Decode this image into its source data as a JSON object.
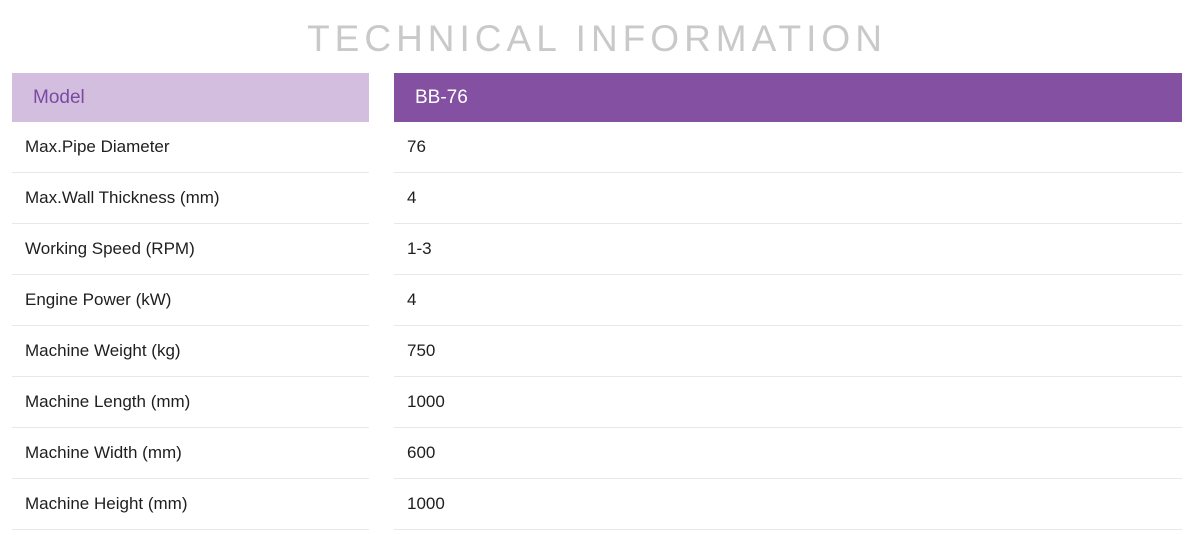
{
  "title": "TECHNICAL INFORMATION",
  "colors": {
    "title": "#c9c9c9",
    "header_left_bg": "#d3bedf",
    "header_left_text": "#7a4aa1",
    "header_right_bg": "#8450a2",
    "header_right_text": "#ffffff",
    "row_divider": "#e8e8e8"
  },
  "table": {
    "header": {
      "label": "Model",
      "value": "BB-76"
    },
    "rows": [
      {
        "label": "Max.Pipe Diameter",
        "value": "76"
      },
      {
        "label": "Max.Wall Thickness (mm)",
        "value": "4"
      },
      {
        "label": "Working Speed (RPM)",
        "value": "1-3"
      },
      {
        "label": "Engine Power (kW)",
        "value": "4"
      },
      {
        "label": "Machine Weight (kg)",
        "value": "750"
      },
      {
        "label": "Machine Length (mm)",
        "value": "1000"
      },
      {
        "label": "Machine Width (mm)",
        "value": "600"
      },
      {
        "label": "Machine Height (mm)",
        "value": "1000"
      }
    ]
  }
}
